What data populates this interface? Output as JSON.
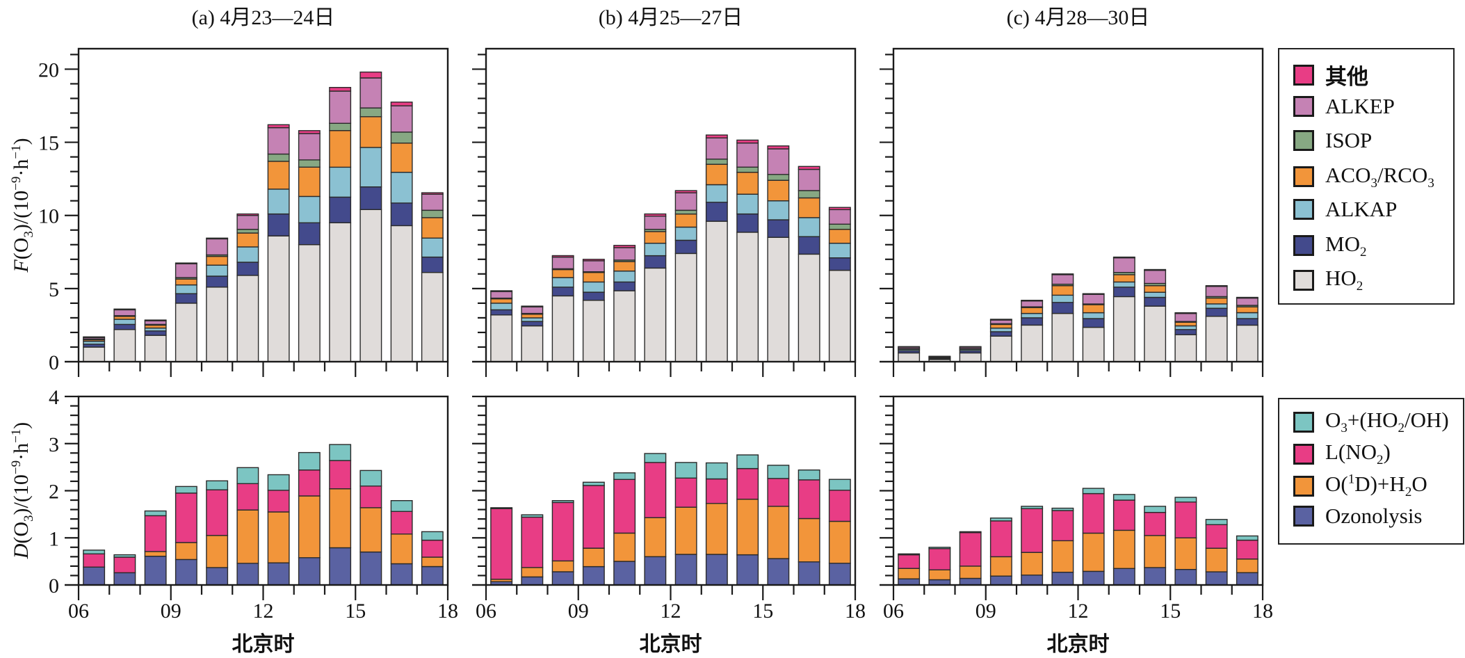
{
  "chart_data": {
    "type": "bar",
    "stacked": true,
    "hours": [
      "06",
      "07",
      "08",
      "09",
      "10",
      "11",
      "12",
      "13",
      "14",
      "15",
      "16",
      "17"
    ],
    "x_tick_labels": [
      "06",
      "09",
      "12",
      "15",
      "18"
    ],
    "xlabel": "北京时",
    "top_row": {
      "ylabel": "F(O3)/(10^-9·h^-1)",
      "ylim": [
        0,
        21.4
      ],
      "y_ticks": [
        0,
        5,
        10,
        15,
        20
      ],
      "series_names": [
        "HO2",
        "MO2",
        "ALKAP",
        "ACO3/RCO3",
        "ISOP",
        "ALKEP",
        "其他"
      ],
      "colors": [
        "#e0dcda",
        "#434a8c",
        "#8bc1d2",
        "#f2953a",
        "#87a883",
        "#c582b4",
        "#e83d85"
      ]
    },
    "bottom_row": {
      "ylabel": "D(O3)/(10^-9·h^-1)",
      "ylim": [
        0,
        4
      ],
      "y_ticks": [
        0,
        1,
        2,
        3,
        4
      ],
      "series_names": [
        "Ozonolysis",
        "O(1D)+H2O",
        "L(NO2)",
        "O3+(HO2/OH)"
      ],
      "colors": [
        "#5a62a2",
        "#f2953a",
        "#e83d85",
        "#7cc5c2"
      ]
    },
    "panels": [
      {
        "title": "(a) 4月23—24日",
        "production": {
          "HO2": [
            1.0,
            2.2,
            1.8,
            4.0,
            5.1,
            5.9,
            8.6,
            8.0,
            9.5,
            10.4,
            9.3,
            6.1
          ],
          "MO2": [
            0.2,
            0.35,
            0.3,
            0.65,
            0.75,
            0.9,
            1.5,
            1.5,
            1.75,
            1.55,
            1.55,
            1.05
          ],
          "ALKAP": [
            0.2,
            0.35,
            0.2,
            0.6,
            0.75,
            1.05,
            1.7,
            1.8,
            2.05,
            2.7,
            2.1,
            1.3
          ],
          "ACO3/RCO3": [
            0.1,
            0.2,
            0.2,
            0.4,
            0.6,
            0.95,
            1.9,
            2.0,
            2.5,
            2.1,
            2.0,
            1.4
          ],
          "ISOP": [
            0.05,
            0.05,
            0.05,
            0.1,
            0.1,
            0.25,
            0.5,
            0.5,
            0.5,
            0.6,
            0.75,
            0.5
          ],
          "ALKEP": [
            0.1,
            0.4,
            0.25,
            0.95,
            1.1,
            0.95,
            1.8,
            1.8,
            2.2,
            2.05,
            1.8,
            1.1
          ],
          "其他": [
            0.05,
            0.05,
            0.05,
            0.05,
            0.05,
            0.1,
            0.2,
            0.2,
            0.25,
            0.4,
            0.25,
            0.1
          ]
        },
        "destruction": {
          "Ozonolysis": [
            0.38,
            0.26,
            0.61,
            0.54,
            0.37,
            0.46,
            0.47,
            0.58,
            0.79,
            0.7,
            0.45,
            0.39
          ],
          "O(1D)+H2O": [
            0.0,
            0.0,
            0.1,
            0.36,
            0.68,
            1.13,
            1.08,
            1.31,
            1.25,
            0.94,
            0.63,
            0.2
          ],
          "L(NO2)": [
            0.28,
            0.33,
            0.76,
            1.05,
            0.97,
            0.56,
            0.46,
            0.55,
            0.6,
            0.46,
            0.48,
            0.36
          ],
          "O3+(HO2/OH)": [
            0.08,
            0.05,
            0.1,
            0.14,
            0.19,
            0.34,
            0.33,
            0.37,
            0.34,
            0.33,
            0.23,
            0.18
          ]
        }
      },
      {
        "title": "(b) 4月25—27日",
        "production": {
          "HO2": [
            3.2,
            2.45,
            4.5,
            4.2,
            4.85,
            6.4,
            7.4,
            9.6,
            8.85,
            8.5,
            7.35,
            6.25
          ],
          "MO2": [
            0.35,
            0.3,
            0.6,
            0.55,
            0.6,
            0.85,
            0.9,
            1.3,
            1.25,
            1.2,
            1.2,
            0.85
          ],
          "ALKAP": [
            0.45,
            0.25,
            0.65,
            0.7,
            0.75,
            0.85,
            0.9,
            1.2,
            1.35,
            1.3,
            1.3,
            1.0
          ],
          "ACO3/RCO3": [
            0.3,
            0.25,
            0.55,
            0.65,
            0.65,
            0.8,
            0.9,
            1.4,
            1.5,
            1.4,
            1.35,
            0.95
          ],
          "ISOP": [
            0.05,
            0.05,
            0.05,
            0.05,
            0.1,
            0.15,
            0.25,
            0.35,
            0.35,
            0.4,
            0.5,
            0.35
          ],
          "ALKEP": [
            0.45,
            0.45,
            0.8,
            0.75,
            0.85,
            0.9,
            1.2,
            1.45,
            1.65,
            1.75,
            1.45,
            1.0
          ],
          "其他": [
            0.05,
            0.05,
            0.1,
            0.1,
            0.15,
            0.15,
            0.15,
            0.2,
            0.2,
            0.2,
            0.2,
            0.15
          ]
        },
        "destruction": {
          "Ozonolysis": [
            0.07,
            0.17,
            0.28,
            0.39,
            0.5,
            0.6,
            0.65,
            0.65,
            0.64,
            0.56,
            0.49,
            0.46
          ],
          "O(1D)+H2O": [
            0.05,
            0.2,
            0.23,
            0.39,
            0.6,
            0.83,
            1.0,
            1.08,
            1.18,
            1.11,
            0.92,
            0.89
          ],
          "L(NO2)": [
            1.5,
            1.07,
            1.24,
            1.33,
            1.14,
            1.17,
            0.62,
            0.52,
            0.65,
            0.59,
            0.82,
            0.66
          ],
          "O3+(HO2/OH)": [
            0.02,
            0.05,
            0.04,
            0.07,
            0.14,
            0.19,
            0.33,
            0.34,
            0.29,
            0.28,
            0.21,
            0.23
          ]
        }
      },
      {
        "title": "(c) 4月28—30日",
        "production": {
          "HO2": [
            0.6,
            0.15,
            0.6,
            1.75,
            2.5,
            3.3,
            2.35,
            4.45,
            3.8,
            1.85,
            3.1,
            2.5
          ],
          "MO2": [
            0.15,
            0.05,
            0.15,
            0.3,
            0.5,
            0.75,
            0.6,
            0.65,
            0.6,
            0.35,
            0.55,
            0.45
          ],
          "ALKAP": [
            0.1,
            0.05,
            0.1,
            0.25,
            0.3,
            0.5,
            0.4,
            0.35,
            0.35,
            0.25,
            0.3,
            0.4
          ],
          "ACO3/RCO3": [
            0.05,
            0.05,
            0.05,
            0.25,
            0.4,
            0.65,
            0.55,
            0.5,
            0.45,
            0.25,
            0.4,
            0.4
          ],
          "ISOP": [
            0.0,
            0.0,
            0.0,
            0.05,
            0.05,
            0.1,
            0.05,
            0.15,
            0.15,
            0.05,
            0.1,
            0.1
          ],
          "ALKEP": [
            0.1,
            0.05,
            0.1,
            0.25,
            0.4,
            0.65,
            0.65,
            1.0,
            0.9,
            0.55,
            0.7,
            0.5
          ],
          "其他": [
            0.03,
            0.02,
            0.03,
            0.05,
            0.05,
            0.05,
            0.05,
            0.05,
            0.05,
            0.05,
            0.05,
            0.05
          ]
        },
        "destruction": {
          "Ozonolysis": [
            0.13,
            0.11,
            0.14,
            0.19,
            0.21,
            0.27,
            0.29,
            0.35,
            0.37,
            0.33,
            0.28,
            0.26
          ],
          "O(1D)+H2O": [
            0.22,
            0.21,
            0.26,
            0.41,
            0.48,
            0.67,
            0.81,
            0.81,
            0.68,
            0.67,
            0.5,
            0.29
          ],
          "L(NO2)": [
            0.29,
            0.45,
            0.71,
            0.76,
            0.93,
            0.64,
            0.84,
            0.64,
            0.49,
            0.76,
            0.5,
            0.4
          ],
          "O3+(HO2/OH)": [
            0.02,
            0.03,
            0.02,
            0.06,
            0.05,
            0.05,
            0.11,
            0.12,
            0.13,
            0.1,
            0.11,
            0.09
          ]
        }
      }
    ],
    "legends": {
      "production": [
        {
          "key": "其他",
          "label_main": "其他",
          "color": "#e83d85"
        },
        {
          "key": "ALKEP",
          "label_main": "ALKEP",
          "color": "#c582b4"
        },
        {
          "key": "ISOP",
          "label_main": "ISOP",
          "color": "#87a883"
        },
        {
          "key": "ACO3/RCO3",
          "label_main": "ACO",
          "sub1": "3",
          "mid": "/RCO",
          "sub2": "3",
          "color": "#f2953a"
        },
        {
          "key": "ALKAP",
          "label_main": "ALKAP",
          "color": "#8bc1d2"
        },
        {
          "key": "MO2",
          "label_main": "MO",
          "sub1": "2",
          "color": "#434a8c"
        },
        {
          "key": "HO2",
          "label_main": "HO",
          "sub1": "2",
          "color": "#e0dcda"
        }
      ],
      "destruction": [
        {
          "key": "O3+(HO2/OH)",
          "label_main": "O",
          "sub1": "3",
          "mid": "+(HO",
          "sub2": "2",
          "tail": "/OH)",
          "color": "#7cc5c2"
        },
        {
          "key": "L(NO2)",
          "label_main": "L(NO",
          "sub1": "2",
          "mid": ")",
          "color": "#e83d85"
        },
        {
          "key": "O(1D)+H2O",
          "label_main": "O(",
          "sup1": "1",
          "mid": "D)+H",
          "sub2": "2",
          "tail": "O",
          "color": "#f2953a"
        },
        {
          "key": "Ozonolysis",
          "label_main": "Ozonolysis",
          "color": "#5a62a2"
        }
      ]
    }
  }
}
